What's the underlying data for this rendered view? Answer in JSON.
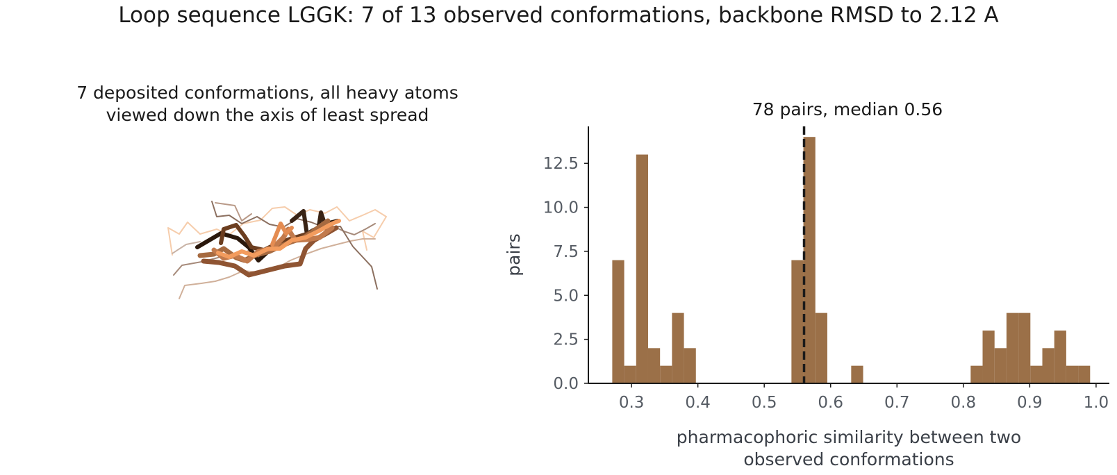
{
  "figure": {
    "suptitle": "Loop sequence LGGK: 7 of 13 observed conformations, backbone RMSD to 2.12 A"
  },
  "left_panel": {
    "title_line1": "7 deposited conformations, all heavy atoms",
    "title_line2": "viewed down the axis of least spread"
  },
  "chart_data": {
    "type": "bar",
    "title": "78 pairs, median 0.56",
    "xlabel_line1": "pharmacophoric similarity between two",
    "xlabel_line2": "observed conformations",
    "ylabel": "pairs",
    "xlim": [
      0.235,
      1.02
    ],
    "ylim": [
      0,
      14.6
    ],
    "xticks": [
      0.3,
      0.4,
      0.5,
      0.6,
      0.7,
      0.8,
      0.9,
      1.0
    ],
    "xtick_labels": [
      "0.3",
      "0.4",
      "0.5",
      "0.6",
      "0.7",
      "0.8",
      "0.9",
      "1.0"
    ],
    "yticks": [
      0,
      2.5,
      5,
      7.5,
      10,
      12.5
    ],
    "ytick_labels": [
      "0.0",
      "2.5",
      "5.0",
      "7.5",
      "10.0",
      "12.5"
    ],
    "bin_width": 0.018,
    "bin_starts": [
      0.271,
      0.289,
      0.307,
      0.325,
      0.343,
      0.361,
      0.379,
      0.541,
      0.559,
      0.577,
      0.631,
      0.811,
      0.829,
      0.847,
      0.865,
      0.883,
      0.901,
      0.919,
      0.937,
      0.955,
      0.973
    ],
    "counts": [
      7,
      1,
      13,
      2,
      1,
      4,
      2,
      7,
      14,
      4,
      1,
      1,
      3,
      2,
      4,
      4,
      1,
      2,
      3,
      1,
      1
    ],
    "median": 0.56,
    "bar_color": "#9b7048",
    "median_line_color": "#1a1a1a"
  }
}
